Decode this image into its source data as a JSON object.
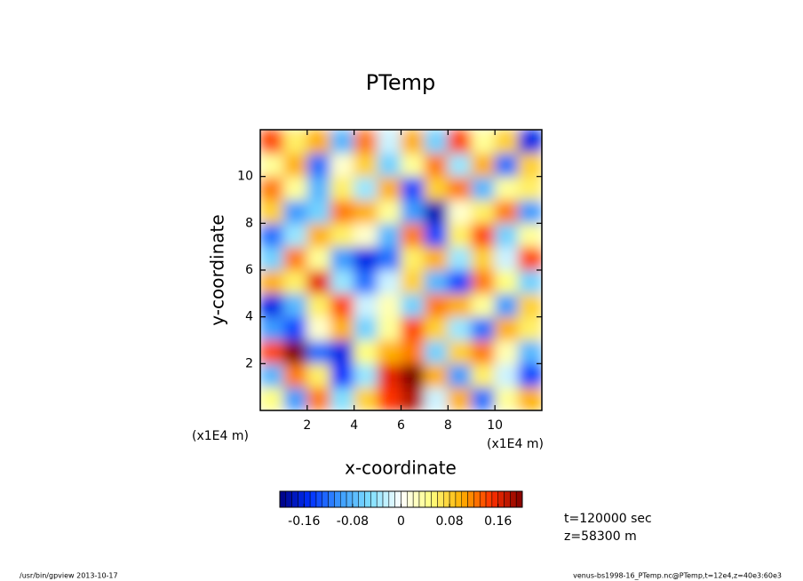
{
  "chart_data": {
    "type": "heatmap",
    "title": "PTemp",
    "x_label": "x-coordinate",
    "y_label": "y-coordinate",
    "x_unit": "(x1E4 m)",
    "y_unit": "(x1E4 m)",
    "x": [
      0.5,
      1.5,
      2.5,
      3.5,
      4.5,
      5.5,
      6.5,
      7.5,
      8.5,
      9.5,
      10.5,
      11.5
    ],
    "y": [
      0.5,
      1.5,
      2.5,
      3.5,
      4.5,
      5.5,
      6.5,
      7.5,
      8.5,
      9.5,
      10.5,
      11.5
    ],
    "z": [
      [
        0.05,
        -0.1,
        0.12,
        -0.05,
        0.08,
        0.15,
        0.18,
        -0.02,
        0.1,
        -0.12,
        0.04,
        0.1
      ],
      [
        -0.08,
        0.12,
        0.06,
        -0.15,
        -0.04,
        0.16,
        0.2,
        0.1,
        -0.1,
        0.06,
        -0.02,
        -0.14
      ],
      [
        0.14,
        0.2,
        -0.12,
        -0.16,
        0.05,
        0.1,
        0.12,
        -0.06,
        0.08,
        0.12,
        0.03,
        -0.08
      ],
      [
        -0.1,
        -0.14,
        0.02,
        0.1,
        -0.06,
        0.04,
        0.14,
        0.08,
        -0.04,
        -0.12,
        0.1,
        0.06
      ],
      [
        -0.16,
        -0.08,
        0.06,
        0.14,
        -0.02,
        0.03,
        -0.06,
        0.12,
        0.1,
        0.04,
        -0.1,
        0.08
      ],
      [
        0.1,
        0.06,
        0.16,
        -0.04,
        -0.12,
        -0.02,
        0.08,
        -0.08,
        -0.14,
        0.12,
        0.05,
        -0.06
      ],
      [
        -0.06,
        0.12,
        0.04,
        -0.1,
        -0.16,
        -0.12,
        0.06,
        0.1,
        -0.04,
        0.08,
        -0.02,
        0.14
      ],
      [
        -0.12,
        -0.04,
        0.1,
        0.06,
        0.02,
        -0.08,
        0.12,
        -0.14,
        0.06,
        0.14,
        -0.06,
        0.04
      ],
      [
        0.08,
        -0.1,
        -0.06,
        0.12,
        0.1,
        0.04,
        -0.1,
        -0.18,
        0.02,
        0.06,
        0.12,
        -0.1
      ],
      [
        0.12,
        0.04,
        -0.08,
        0.06,
        -0.04,
        0.1,
        -0.14,
        0.08,
        0.12,
        -0.08,
        0.04,
        0.06
      ],
      [
        0.04,
        0.1,
        -0.12,
        0.02,
        0.08,
        -0.06,
        0.04,
        0.12,
        -0.04,
        0.1,
        -0.12,
        0.08
      ],
      [
        0.14,
        0.06,
        0.1,
        -0.08,
        0.12,
        -0.02,
        0.1,
        -0.06,
        0.14,
        0.04,
        0.08,
        -0.16
      ]
    ],
    "xlim": [
      0,
      12
    ],
    "ylim": [
      0,
      12
    ],
    "xticks": [
      2,
      4,
      6,
      8,
      10
    ],
    "yticks": [
      2,
      4,
      6,
      8,
      10
    ],
    "colormap": [
      "#000080",
      "#0030ff",
      "#3c9cff",
      "#80e0ff",
      "#ffffff",
      "#ffff80",
      "#ffb000",
      "#ff3000",
      "#800000"
    ],
    "colorbar": {
      "lim": [
        -0.2,
        0.2
      ],
      "step": 0.01,
      "ticks": [
        -0.16,
        -0.08,
        0,
        0.08,
        0.16
      ]
    },
    "annotations": [
      "t=120000 sec",
      "z=58300 m"
    ],
    "footer_left": "/usr/bin/gpview   2013-10-17",
    "footer_right": "venus-bs1998-16_PTemp.nc@PTemp,t=12e4,z=40e3:60e3"
  }
}
